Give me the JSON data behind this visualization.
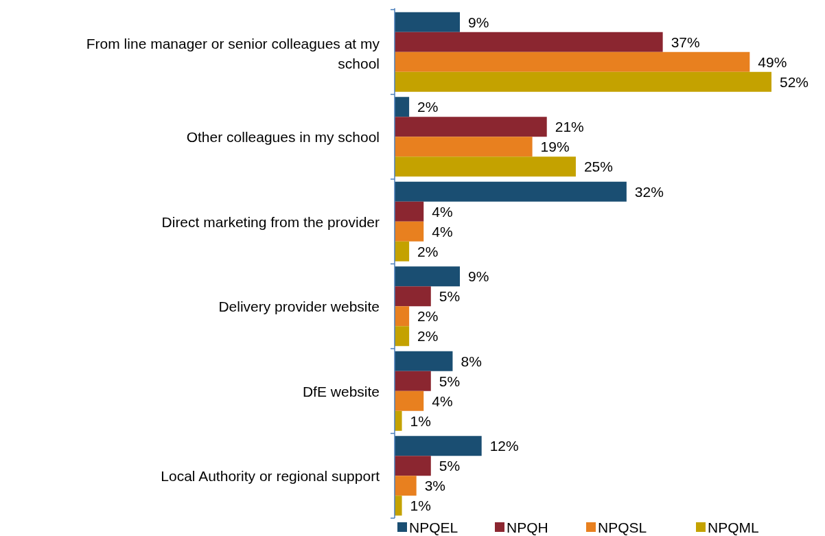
{
  "chart_data": {
    "type": "bar",
    "orientation": "horizontal",
    "categories": [
      "From line manager or senior colleagues at my school",
      "Other colleagues in my school",
      "Direct marketing from the provider",
      "Delivery provider website",
      "DfE website",
      "Local Authority or regional support"
    ],
    "series": [
      {
        "name": "NPQEL",
        "color": "#1a4e72",
        "values": [
          9,
          2,
          32,
          9,
          8,
          12
        ],
        "value_labels": [
          "9%",
          "2%",
          "32%",
          "9%",
          "8%",
          "12%"
        ]
      },
      {
        "name": "NPQH",
        "color": "#8b2630",
        "values": [
          37,
          21,
          4,
          5,
          5,
          5
        ],
        "value_labels": [
          "37%",
          "21%",
          "4%",
          "5%",
          "5%",
          "5%"
        ]
      },
      {
        "name": "NPQSL",
        "color": "#e8801f",
        "values": [
          49,
          19,
          4,
          2,
          4,
          3
        ],
        "value_labels": [
          "49%",
          "19%",
          "4%",
          "2%",
          "4%",
          "3%"
        ]
      },
      {
        "name": "NPQML",
        "color": "#c4a200",
        "values": [
          52,
          25,
          2,
          2,
          1,
          1
        ],
        "value_labels": [
          "52%",
          "25%",
          "2%",
          "2%",
          "1%",
          "1%"
        ]
      }
    ],
    "legend": "bottom"
  }
}
